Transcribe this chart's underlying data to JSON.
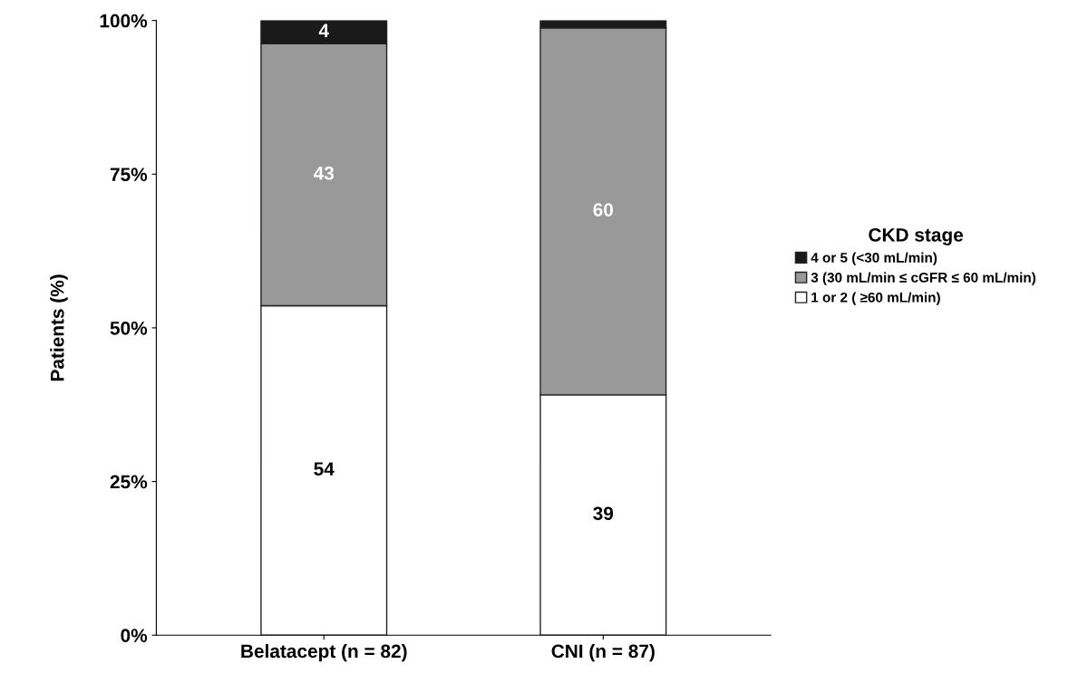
{
  "chart_data": {
    "type": "bar",
    "stacked": true,
    "ylabel": "Patients (%)",
    "legend_title": "CKD stage",
    "legend": "right",
    "categories": [
      "Belatacept (n = 82)",
      "CNI (n = 87)"
    ],
    "series": [
      {
        "name": "1 or 2 ( ≥60 mL/min)",
        "color": "#ffffff",
        "values": [
          53.6,
          39.1
        ],
        "value_labels": [
          "54",
          "39"
        ]
      },
      {
        "name": "3 (30 mL/min ≤ cGFR ≤ 60 mL/min)",
        "color": "#999999",
        "values": [
          42.6,
          59.7
        ],
        "value_labels": [
          "43",
          "60"
        ]
      },
      {
        "name": "4 or 5 (<30 mL/min)",
        "color": "#1a1a1a",
        "values": [
          3.8,
          1.2
        ],
        "value_labels": [
          "4",
          null
        ]
      }
    ],
    "ylim": [
      0,
      100
    ],
    "yticks": [
      {
        "value": 0,
        "label": "0%"
      },
      {
        "value": 25,
        "label": "25%"
      },
      {
        "value": 50,
        "label": "50%"
      },
      {
        "value": 75,
        "label": "75%"
      },
      {
        "value": 100,
        "label": "100%"
      }
    ],
    "grid": false
  }
}
